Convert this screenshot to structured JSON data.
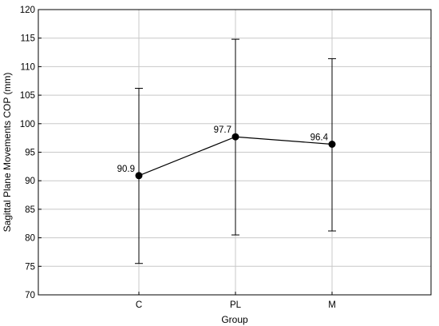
{
  "chart_data": {
    "type": "line",
    "xlabel": "Group",
    "ylabel": "Sagittal Plane Movements COP (mm)",
    "categories": [
      "C",
      "PL",
      "M"
    ],
    "series": [
      {
        "values": [
          90.9,
          97.7,
          96.4
        ],
        "error_low": [
          75.5,
          80.5,
          81.2
        ],
        "error_high": [
          106.2,
          114.8,
          111.4
        ],
        "labels": [
          "90.9",
          "97.7",
          "96.4"
        ]
      }
    ],
    "ylim": [
      70,
      120
    ],
    "yticks": [
      70,
      75,
      80,
      85,
      90,
      95,
      100,
      105,
      110,
      115,
      120
    ],
    "grid": true,
    "colors": {
      "line": "#000000",
      "grid": "#c8c8c8",
      "frame": "#000000"
    }
  }
}
